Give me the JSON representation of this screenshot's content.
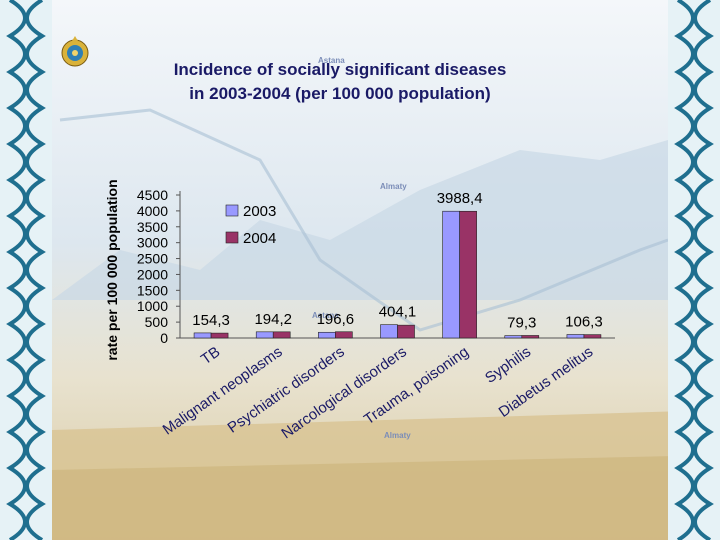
{
  "slide": {
    "title_line1": "Incidence of socially significant diseases",
    "title_line2": "in 2003-2004 (per 100 000 population)",
    "map_labels": [
      "Astana",
      "Almaty",
      "Astana",
      "Almaty"
    ],
    "emblem_icon": "kazakhstan-emblem-icon",
    "border_pattern": "ornamental-border-icon"
  },
  "colors": {
    "series_2003": "#9999ff",
    "series_2004": "#993366",
    "title": "#1a1a66",
    "border": "#1f6f8f"
  },
  "chart_data": {
    "type": "bar",
    "title": "Incidence of socially significant diseases in 2003-2004 (per 100 000 population)",
    "ylabel": "rate per 100 000 population",
    "xlabel": "",
    "ylim": [
      0,
      4500
    ],
    "yticks": [
      0,
      500,
      1000,
      1500,
      2000,
      2500,
      3000,
      3500,
      4000,
      4500
    ],
    "grid": false,
    "legend_position": "top-left",
    "categories": [
      "TB",
      "Malignant neoplasms",
      "Psychiatric disorders",
      "Narcological disorders",
      "Trauma, poisoning",
      "Syphilis",
      "Diabetus melitus"
    ],
    "series": [
      {
        "name": "2003",
        "values": [
          160,
          194,
          180,
          420,
          3990,
          75,
          110
        ]
      },
      {
        "name": "2004",
        "values": [
          154.3,
          194.2,
          196.6,
          404.1,
          3988.4,
          79.3,
          106.3
        ]
      }
    ],
    "data_labels": [
      "154,3",
      "194,2",
      "196,6",
      "404,1",
      "3988,4",
      "79,3",
      "106,3"
    ]
  }
}
